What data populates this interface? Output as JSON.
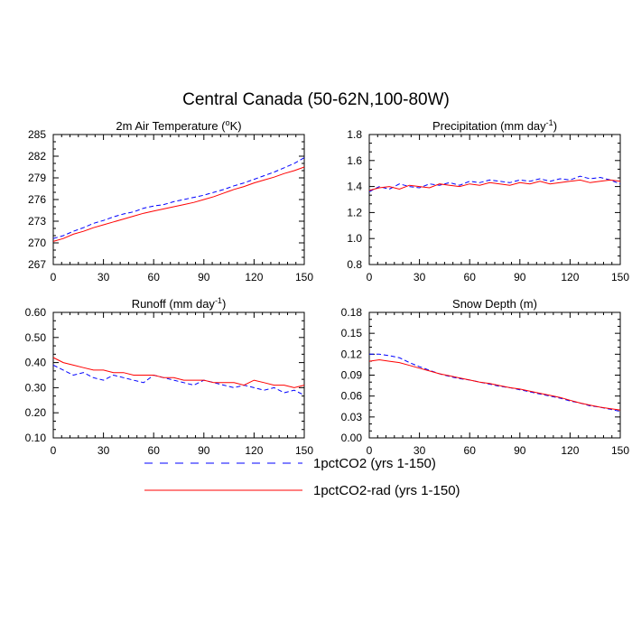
{
  "title": "Central Canada (50-62N,100-80W)",
  "colors": {
    "series1": "#0000ff",
    "series2": "#ff0000",
    "axis": "#000000"
  },
  "legend": {
    "items": [
      {
        "label": "1pctCO2 (yrs 1-150)",
        "color": "#0000ff",
        "dash": "dashed"
      },
      {
        "label": "1pctCO2-rad (yrs 1-150)",
        "color": "#ff0000",
        "dash": "solid"
      }
    ]
  },
  "chart_data": [
    {
      "type": "line",
      "title": "2m Air Temperature (°K)",
      "title_main": "2m Air Temperature (",
      "title_sup": "o",
      "title_tail": "K)",
      "xlim": [
        0,
        150
      ],
      "ylim": [
        267,
        285
      ],
      "xticks": [
        "0",
        "30",
        "60",
        "90",
        "120",
        "150"
      ],
      "yticks": [
        "267",
        "270",
        "273",
        "276",
        "279",
        "282",
        "285"
      ],
      "series": [
        {
          "name": "1pctCO2 (yrs 1-150)",
          "x": [
            0,
            6,
            12,
            18,
            24,
            30,
            36,
            42,
            48,
            54,
            60,
            66,
            72,
            78,
            84,
            90,
            96,
            102,
            108,
            114,
            120,
            126,
            132,
            138,
            144,
            150
          ],
          "values": [
            270.6,
            271.0,
            271.6,
            272.1,
            272.7,
            273.1,
            273.6,
            274.0,
            274.3,
            274.8,
            275.1,
            275.3,
            275.7,
            276.0,
            276.3,
            276.6,
            277.0,
            277.4,
            277.9,
            278.3,
            278.8,
            279.3,
            279.8,
            280.4,
            281.0,
            281.8
          ]
        },
        {
          "name": "1pctCO2-rad (yrs 1-150)",
          "x": [
            0,
            6,
            12,
            18,
            24,
            30,
            36,
            42,
            48,
            54,
            60,
            66,
            72,
            78,
            84,
            90,
            96,
            102,
            108,
            114,
            120,
            126,
            132,
            138,
            144,
            150
          ],
          "values": [
            270.2,
            270.6,
            271.2,
            271.6,
            272.1,
            272.5,
            272.9,
            273.3,
            273.7,
            274.1,
            274.4,
            274.7,
            275.0,
            275.3,
            275.6,
            276.0,
            276.4,
            276.9,
            277.4,
            277.8,
            278.3,
            278.7,
            279.1,
            279.6,
            280.0,
            280.5
          ]
        }
      ]
    },
    {
      "type": "line",
      "title": "Precipitation (mm day-1)",
      "title_main": "Precipitation (mm day",
      "title_sup": "-1",
      "title_tail": ")",
      "xlim": [
        0,
        150
      ],
      "ylim": [
        0.8,
        1.8
      ],
      "xticks": [
        "0",
        "30",
        "60",
        "90",
        "120",
        "150"
      ],
      "yticks": [
        "0.8",
        "1.0",
        "1.2",
        "1.4",
        "1.6",
        "1.8"
      ],
      "series": [
        {
          "name": "1pctCO2 (yrs 1-150)",
          "x": [
            0,
            6,
            12,
            18,
            24,
            30,
            36,
            42,
            48,
            54,
            60,
            66,
            72,
            78,
            84,
            90,
            96,
            102,
            108,
            114,
            120,
            126,
            132,
            138,
            144,
            150
          ],
          "values": [
            1.36,
            1.4,
            1.38,
            1.42,
            1.4,
            1.39,
            1.42,
            1.41,
            1.43,
            1.41,
            1.44,
            1.43,
            1.45,
            1.44,
            1.43,
            1.45,
            1.44,
            1.46,
            1.44,
            1.46,
            1.45,
            1.48,
            1.46,
            1.47,
            1.45,
            1.42
          ]
        },
        {
          "name": "1pctCO2-rad (yrs 1-150)",
          "x": [
            0,
            6,
            12,
            18,
            24,
            30,
            36,
            42,
            48,
            54,
            60,
            66,
            72,
            78,
            84,
            90,
            96,
            102,
            108,
            114,
            120,
            126,
            132,
            138,
            144,
            150
          ],
          "values": [
            1.37,
            1.39,
            1.4,
            1.38,
            1.41,
            1.4,
            1.39,
            1.42,
            1.41,
            1.4,
            1.42,
            1.41,
            1.43,
            1.42,
            1.41,
            1.43,
            1.42,
            1.44,
            1.42,
            1.43,
            1.44,
            1.45,
            1.43,
            1.44,
            1.45,
            1.44
          ]
        }
      ]
    },
    {
      "type": "line",
      "title": "Runoff (mm day-1)",
      "title_main": "Runoff (mm day",
      "title_sup": "-1",
      "title_tail": ")",
      "xlim": [
        0,
        150
      ],
      "ylim": [
        0.1,
        0.6
      ],
      "xticks": [
        "0",
        "30",
        "60",
        "90",
        "120",
        "150"
      ],
      "yticks": [
        "0.10",
        "0.20",
        "0.30",
        "0.40",
        "0.50",
        "0.60"
      ],
      "series": [
        {
          "name": "1pctCO2 (yrs 1-150)",
          "x": [
            0,
            6,
            12,
            18,
            24,
            30,
            36,
            42,
            48,
            54,
            60,
            66,
            72,
            78,
            84,
            90,
            96,
            102,
            108,
            114,
            120,
            126,
            132,
            138,
            144,
            150
          ],
          "values": [
            0.39,
            0.37,
            0.35,
            0.36,
            0.34,
            0.33,
            0.35,
            0.34,
            0.33,
            0.32,
            0.35,
            0.34,
            0.33,
            0.32,
            0.31,
            0.33,
            0.32,
            0.31,
            0.3,
            0.31,
            0.3,
            0.29,
            0.3,
            0.28,
            0.29,
            0.27
          ]
        },
        {
          "name": "1pctCO2-rad (yrs 1-150)",
          "x": [
            0,
            6,
            12,
            18,
            24,
            30,
            36,
            42,
            48,
            54,
            60,
            66,
            72,
            78,
            84,
            90,
            96,
            102,
            108,
            114,
            120,
            126,
            132,
            138,
            144,
            150
          ],
          "values": [
            0.42,
            0.4,
            0.39,
            0.38,
            0.37,
            0.37,
            0.36,
            0.36,
            0.35,
            0.35,
            0.35,
            0.34,
            0.34,
            0.33,
            0.33,
            0.33,
            0.32,
            0.32,
            0.32,
            0.31,
            0.33,
            0.32,
            0.31,
            0.31,
            0.3,
            0.31
          ]
        }
      ]
    },
    {
      "type": "line",
      "title": "Snow Depth (m)",
      "title_main": "Snow Depth (m)",
      "title_sup": "",
      "title_tail": "",
      "xlim": [
        0,
        150
      ],
      "ylim": [
        0.0,
        0.18
      ],
      "xticks": [
        "0",
        "30",
        "60",
        "90",
        "120",
        "150"
      ],
      "yticks": [
        "0.00",
        "0.03",
        "0.06",
        "0.09",
        "0.12",
        "0.15",
        "0.18"
      ],
      "series": [
        {
          "name": "1pctCO2 (yrs 1-150)",
          "x": [
            0,
            6,
            12,
            18,
            24,
            30,
            36,
            42,
            48,
            54,
            60,
            66,
            72,
            78,
            84,
            90,
            96,
            102,
            108,
            114,
            120,
            126,
            132,
            138,
            144,
            150
          ],
          "values": [
            0.12,
            0.12,
            0.118,
            0.115,
            0.108,
            0.102,
            0.097,
            0.092,
            0.088,
            0.085,
            0.083,
            0.08,
            0.077,
            0.074,
            0.072,
            0.069,
            0.066,
            0.063,
            0.06,
            0.057,
            0.053,
            0.05,
            0.046,
            0.044,
            0.041,
            0.038
          ]
        },
        {
          "name": "1pctCO2-rad (yrs 1-150)",
          "x": [
            0,
            6,
            12,
            18,
            24,
            30,
            36,
            42,
            48,
            54,
            60,
            66,
            72,
            78,
            84,
            90,
            96,
            102,
            108,
            114,
            120,
            126,
            132,
            138,
            144,
            150
          ],
          "values": [
            0.11,
            0.112,
            0.11,
            0.108,
            0.104,
            0.1,
            0.096,
            0.092,
            0.089,
            0.086,
            0.083,
            0.08,
            0.078,
            0.075,
            0.072,
            0.07,
            0.067,
            0.064,
            0.061,
            0.058,
            0.054,
            0.05,
            0.047,
            0.044,
            0.042,
            0.04
          ]
        }
      ]
    }
  ]
}
